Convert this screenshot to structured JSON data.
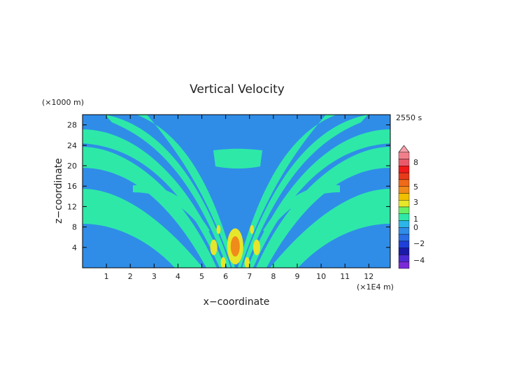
{
  "chart_data": {
    "type": "heatmap",
    "title": "Vertical Velocity",
    "xlabel": "x−coordinate",
    "ylabel": "z−coordinate",
    "x_unit": "(×1E4 m)",
    "y_unit": "(×1000 m)",
    "time_label": "2550 s",
    "xlim": [
      0,
      12.9
    ],
    "ylim": [
      0,
      30
    ],
    "xticks": [
      "1",
      "2",
      "3",
      "4",
      "5",
      "6",
      "7",
      "8",
      "9",
      "10",
      "11",
      "12"
    ],
    "yticks": [
      "4",
      "8",
      "12",
      "16",
      "20",
      "24",
      "28"
    ],
    "colorbar": {
      "tick_labels": [
        "8",
        "5",
        "3",
        "1",
        "0",
        "−2",
        "−4"
      ],
      "levels": [
        {
          "color": "#7a2bd6"
        },
        {
          "color": "#4a2ad4"
        },
        {
          "color": "#1a1aa8"
        },
        {
          "color": "#1f3fd9"
        },
        {
          "color": "#2a6ee6"
        },
        {
          "color": "#2f8de8"
        },
        {
          "color": "#2bb5e8"
        },
        {
          "color": "#2ee8a8"
        },
        {
          "color": "#66f066"
        },
        {
          "color": "#e6e62a"
        },
        {
          "color": "#f0c000"
        },
        {
          "color": "#f08a1a"
        },
        {
          "color": "#f06a1a"
        },
        {
          "color": "#e83a1a"
        },
        {
          "color": "#f21a1a"
        },
        {
          "color": "#e85a6a"
        },
        {
          "color": "#f07f8a"
        },
        {
          "color": "#f5a0aa"
        }
      ]
    },
    "field_colors": {
      "negative": "#2f8de8",
      "positive": "#2ee8a8",
      "strong": "#e6e62a",
      "peak": "#f08a1a"
    }
  }
}
